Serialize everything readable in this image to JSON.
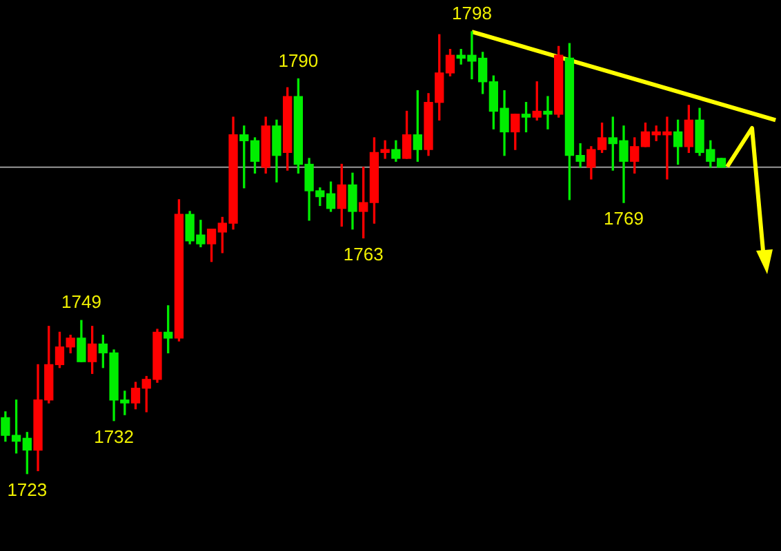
{
  "chart_data": {
    "type": "candlestick",
    "tick_labels": false,
    "categories": [
      null,
      null,
      null,
      null,
      null,
      null,
      null,
      null,
      null,
      null,
      null,
      null,
      null,
      null,
      null,
      null,
      null,
      null,
      null,
      null,
      null,
      null,
      null,
      null,
      null,
      null,
      null,
      null,
      null,
      null,
      null,
      null,
      null,
      null,
      null,
      null,
      null,
      null,
      null,
      null,
      null,
      null,
      null,
      null,
      null,
      null,
      null,
      null,
      null,
      null,
      null,
      null,
      null,
      null,
      null,
      null,
      null,
      null,
      null,
      null,
      null,
      null,
      null,
      null,
      null,
      null,
      null,
      null,
      null,
      null,
      null,
      null
    ],
    "ohlc": [
      [
        1732.5,
        1733.5,
        1728.5,
        1729.5
      ],
      [
        1729.5,
        1735.5,
        1726.5,
        1728.5
      ],
      [
        1729,
        1730,
        1723,
        1727
      ],
      [
        1727,
        1741.5,
        1723.5,
        1735.5
      ],
      [
        1735.5,
        1748,
        1735,
        1741.5
      ],
      [
        1741.5,
        1747,
        1741,
        1744.5
      ],
      [
        1744.5,
        1746.5,
        1743.5,
        1746
      ],
      [
        1746,
        1749,
        1742,
        1742
      ],
      [
        1742,
        1748,
        1740,
        1745
      ],
      [
        1745,
        1746.5,
        1741,
        1743.5
      ],
      [
        1743.5,
        1744,
        1732,
        1735.5
      ],
      [
        1735.5,
        1737,
        1733,
        1735
      ],
      [
        1735,
        1738.5,
        1734,
        1737.5
      ],
      [
        1737.5,
        1739.5,
        1733.5,
        1739
      ],
      [
        1739,
        1747.5,
        1738.5,
        1747
      ],
      [
        1747,
        1751.5,
        1743.5,
        1746
      ],
      [
        1746,
        1769.5,
        1745.5,
        1767
      ],
      [
        1767,
        1767.5,
        1762,
        1762.5
      ],
      [
        1763.5,
        1766,
        1761.5,
        1762
      ],
      [
        1762,
        1764.5,
        1759,
        1764.5
      ],
      [
        1764,
        1766.5,
        1760.5,
        1765.5
      ],
      [
        1765.5,
        1783.5,
        1764.5,
        1780.5
      ],
      [
        1780.5,
        1782,
        1771.5,
        1779.5
      ],
      [
        1779.5,
        1780,
        1774,
        1776
      ],
      [
        1775,
        1783.5,
        1774,
        1782
      ],
      [
        1782,
        1783,
        1772.5,
        1777
      ],
      [
        1777.5,
        1788.5,
        1774.5,
        1787
      ],
      [
        1787,
        1790,
        1774,
        1775.5
      ],
      [
        1775.5,
        1776.5,
        1766,
        1771
      ],
      [
        1771,
        1771.5,
        1768.5,
        1770
      ],
      [
        1770.5,
        1772.5,
        1767.5,
        1768
      ],
      [
        1768,
        1775.5,
        1765,
        1772
      ],
      [
        1772,
        1774,
        1764.5,
        1767.5
      ],
      [
        1767.5,
        1775,
        1763,
        1769
      ],
      [
        1769,
        1780,
        1765.5,
        1777.5
      ],
      [
        1777.5,
        1779.5,
        1776.5,
        1778
      ],
      [
        1778,
        1779.5,
        1776,
        1776.5
      ],
      [
        1776.5,
        1784.5,
        1776.5,
        1780.5
      ],
      [
        1780.5,
        1788,
        1776,
        1778
      ],
      [
        1778,
        1787.5,
        1777,
        1786
      ],
      [
        1786,
        1797.5,
        1783,
        1791
      ],
      [
        1791,
        1795,
        1790.5,
        1794
      ],
      [
        1794,
        1795,
        1792.5,
        1793.5
      ],
      [
        1794,
        1798,
        1790,
        1793
      ],
      [
        1793.5,
        1794.5,
        1787.5,
        1789.5
      ],
      [
        1789.5,
        1790.5,
        1781.5,
        1784.5
      ],
      [
        1785,
        1788,
        1777,
        1781
      ],
      [
        1781,
        1784,
        1778,
        1784
      ],
      [
        1784,
        1786,
        1781,
        1783.5
      ],
      [
        1783.5,
        1789.5,
        1783,
        1784.5
      ],
      [
        1784.5,
        1787,
        1781.5,
        1784
      ],
      [
        1784,
        1795.5,
        1783.5,
        1794
      ],
      [
        1793.5,
        1796,
        1769.5,
        1777
      ],
      [
        1777,
        1779,
        1775,
        1776
      ],
      [
        1775,
        1778.5,
        1773,
        1778
      ],
      [
        1778,
        1782.5,
        1777.5,
        1780
      ],
      [
        1780,
        1783.5,
        1774.5,
        1779
      ],
      [
        1779.5,
        1782,
        1769,
        1776
      ],
      [
        1776,
        1780,
        1774,
        1778.5
      ],
      [
        1778.5,
        1782.5,
        1778.5,
        1781
      ],
      [
        1780.5,
        1782,
        1779.5,
        1781
      ],
      [
        1780.5,
        1783.5,
        1773,
        1781
      ],
      [
        1781,
        1783,
        1775.5,
        1778.5
      ],
      [
        1778.5,
        1785.5,
        1777.5,
        1783
      ],
      [
        1783,
        1785,
        1777,
        1777.5
      ],
      [
        1778,
        1779.5,
        1775,
        1776
      ],
      [
        1776.5,
        1776.5,
        1775,
        1775
      ],
      null,
      null,
      null,
      null,
      null
    ],
    "colors": [
      "#00ee00",
      "#00ee00",
      "#00ee00",
      "#ff0000",
      "#ff0000",
      "#ff0000",
      "#ff0000",
      "#00ee00",
      "#ff0000",
      "#00ee00",
      "#00ee00",
      "#00ee00",
      "#ff0000",
      "#ff0000",
      "#ff0000",
      "#00ee00",
      "#ff0000",
      "#00ee00",
      "#00ee00",
      "#ff0000",
      "#ff0000",
      "#ff0000",
      "#00ee00",
      "#00ee00",
      "#ff0000",
      "#00ee00",
      "#ff0000",
      "#00ee00",
      "#00ee00",
      "#00ee00",
      "#00ee00",
      "#ff0000",
      "#00ee00",
      "#ff0000",
      "#ff0000",
      "#ff0000",
      "#00ee00",
      "#ff0000",
      "#00ee00",
      "#ff0000",
      "#ff0000",
      "#ff0000",
      "#00ee00",
      "#00ee00",
      "#00ee00",
      "#00ee00",
      "#00ee00",
      "#ff0000",
      "#00ee00",
      "#ff0000",
      "#00ee00",
      "#ff0000",
      "#00ee00",
      "#00ee00",
      "#ff0000",
      "#ff0000",
      "#00ee00",
      "#00ee00",
      "#ff0000",
      "#ff0000",
      "#ff0000",
      "#ff0000",
      "#00ee00",
      "#ff0000",
      "#00ee00",
      "#00ee00",
      "#00ee00",
      null,
      null,
      null,
      null,
      null
    ],
    "series": [
      {
        "type": "line",
        "color": "#ffff00",
        "values": [
          null,
          null,
          null,
          null,
          null,
          null,
          null,
          null,
          null,
          null,
          null,
          null,
          null,
          null,
          null,
          null,
          null,
          null,
          null,
          null,
          null,
          null,
          null,
          null,
          null,
          null,
          null,
          null,
          null,
          null,
          null,
          null,
          null,
          null,
          null,
          null,
          null,
          null,
          null,
          null,
          null,
          null,
          null,
          1798,
          null,
          null,
          null,
          null,
          null,
          null,
          null,
          null,
          null,
          null,
          null,
          null,
          null,
          null,
          null,
          null,
          null,
          null,
          null,
          null,
          null,
          null,
          null,
          null,
          null,
          null,
          null,
          1783
        ]
      }
    ],
    "ref_lines": [
      {
        "axis": "y",
        "value": 1775,
        "color": "#9a9a9a"
      }
    ],
    "annotations": [
      {
        "text": "1723",
        "y": 1723
      },
      {
        "text": "1732",
        "y": 1732
      },
      {
        "text": "1749",
        "y": 1749
      },
      {
        "text": "1763",
        "y": 1763
      },
      {
        "text": "1790",
        "y": 1790
      },
      {
        "text": "1798",
        "y": 1798
      },
      {
        "text": "1769",
        "y": 1769
      }
    ]
  }
}
